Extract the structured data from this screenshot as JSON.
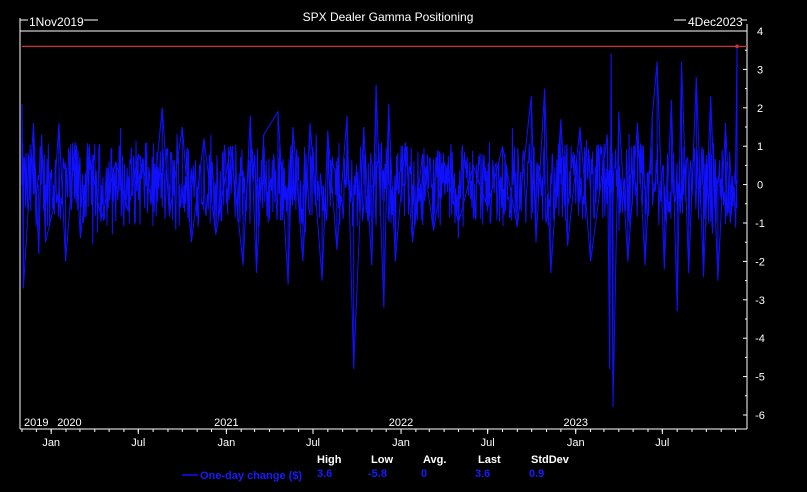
{
  "chart_data": {
    "type": "line",
    "title": "SPX Dealer Gamma Positioning",
    "date_range": {
      "start_label": "1Nov2019",
      "end_label": "4Dec2023"
    },
    "x": {
      "start": "2019-11-01",
      "end": "2023-12-04"
    },
    "ylim": [
      -6,
      4
    ],
    "y_ticks": [
      4,
      3,
      2,
      1,
      0,
      -1,
      -2,
      -3,
      -4,
      -5,
      -6
    ],
    "month_ticks": [
      {
        "label": "Jan",
        "date": "2020-01-01"
      },
      {
        "label": "Jul",
        "date": "2020-07-01"
      },
      {
        "label": "Jan",
        "date": "2021-01-01"
      },
      {
        "label": "Jul",
        "date": "2021-07-01"
      },
      {
        "label": "Jan",
        "date": "2022-01-01"
      },
      {
        "label": "Jul",
        "date": "2022-07-01"
      },
      {
        "label": "Jan",
        "date": "2023-01-01"
      },
      {
        "label": "Jul",
        "date": "2023-07-01"
      }
    ],
    "year_labels": [
      {
        "label": "2019",
        "date": "2019-11-01"
      },
      {
        "label": "2020",
        "date": "2020-01-01"
      },
      {
        "label": "2021",
        "date": "2021-01-01"
      },
      {
        "label": "2022",
        "date": "2022-01-01"
      },
      {
        "label": "2023",
        "date": "2023-01-01"
      }
    ],
    "grid": false,
    "reference_line": {
      "y": 3.6,
      "color": "#d0303a"
    },
    "series": [
      {
        "name": "One-day change ($)",
        "color": "#1010ff",
        "points": [
          [
            "2019-11-01",
            2.1
          ],
          [
            "2019-11-04",
            -2.7
          ],
          [
            "2019-11-25",
            1.6
          ],
          [
            "2019-12-06",
            -1.8
          ],
          [
            "2019-12-12",
            1.3
          ],
          [
            "2019-12-20",
            -1.5
          ],
          [
            "2020-01-06",
            -0.6
          ],
          [
            "2020-01-17",
            1.6
          ],
          [
            "2020-01-31",
            -2.0
          ],
          [
            "2020-02-20",
            1.1
          ],
          [
            "2020-03-02",
            -1.4
          ],
          [
            "2020-03-20",
            0.8
          ],
          [
            "2020-04-15",
            -0.9
          ],
          [
            "2020-05-15",
            0.6
          ],
          [
            "2020-06-10",
            -0.7
          ],
          [
            "2020-07-01",
            0.8
          ],
          [
            "2020-08-01",
            -0.5
          ],
          [
            "2020-08-20",
            2.0
          ],
          [
            "2020-09-04",
            -0.8
          ],
          [
            "2020-10-01",
            1.5
          ],
          [
            "2020-10-20",
            -1.5
          ],
          [
            "2020-11-15",
            1.2
          ],
          [
            "2020-12-10",
            -1.3
          ],
          [
            "2021-01-10",
            1.0
          ],
          [
            "2021-02-05",
            -2.1
          ],
          [
            "2021-02-20",
            1.8
          ],
          [
            "2021-03-05",
            -2.3
          ],
          [
            "2021-03-20",
            1.3
          ],
          [
            "2021-04-19",
            1.9
          ],
          [
            "2021-05-10",
            -2.6
          ],
          [
            "2021-05-20",
            1.5
          ],
          [
            "2021-06-10",
            -2.0
          ],
          [
            "2021-06-25",
            1.6
          ],
          [
            "2021-07-20",
            -2.5
          ],
          [
            "2021-08-01",
            1.4
          ],
          [
            "2021-08-20",
            -1.7
          ],
          [
            "2021-09-10",
            1.8
          ],
          [
            "2021-09-24",
            -4.8
          ],
          [
            "2021-10-15",
            1.5
          ],
          [
            "2021-11-01",
            -2.1
          ],
          [
            "2021-11-10",
            2.6
          ],
          [
            "2021-11-26",
            -3.2
          ],
          [
            "2021-12-06",
            2.1
          ],
          [
            "2021-12-20",
            -2.0
          ],
          [
            "2022-01-10",
            1.1
          ],
          [
            "2022-01-25",
            -1.5
          ],
          [
            "2022-02-15",
            0.8
          ],
          [
            "2022-03-10",
            -1.2
          ],
          [
            "2022-04-01",
            0.6
          ],
          [
            "2022-05-01",
            -1.0
          ],
          [
            "2022-06-01",
            0.5
          ],
          [
            "2022-07-01",
            -0.6
          ],
          [
            "2022-08-01",
            1.0
          ],
          [
            "2022-09-01",
            -1.1
          ],
          [
            "2022-09-30",
            2.3
          ],
          [
            "2022-10-10",
            -1.5
          ],
          [
            "2022-10-28",
            2.5
          ],
          [
            "2022-11-10",
            -2.3
          ],
          [
            "2022-12-01",
            1.7
          ],
          [
            "2022-12-15",
            -1.6
          ],
          [
            "2023-01-10",
            1.5
          ],
          [
            "2023-02-01",
            -2.0
          ],
          [
            "2023-03-08",
            1.3
          ],
          [
            "2023-03-13",
            -4.8
          ],
          [
            "2023-03-16",
            3.4
          ],
          [
            "2023-03-20",
            -5.8
          ],
          [
            "2023-04-01",
            1.9
          ],
          [
            "2023-04-20",
            -2.0
          ],
          [
            "2023-05-10",
            1.6
          ],
          [
            "2023-05-26",
            -2.1
          ],
          [
            "2023-06-10",
            1.8
          ],
          [
            "2023-06-20",
            3.2
          ],
          [
            "2023-07-05",
            -2.2
          ],
          [
            "2023-07-20",
            2.2
          ],
          [
            "2023-08-01",
            -3.3
          ],
          [
            "2023-08-10",
            3.2
          ],
          [
            "2023-08-25",
            -2.3
          ],
          [
            "2023-09-10",
            2.8
          ],
          [
            "2023-09-25",
            -2.4
          ],
          [
            "2023-10-10",
            2.3
          ],
          [
            "2023-10-25",
            -2.5
          ],
          [
            "2023-11-10",
            1.6
          ],
          [
            "2023-11-20",
            -1.0
          ],
          [
            "2023-12-01",
            0.5
          ],
          [
            "2023-12-04",
            3.6
          ]
        ]
      }
    ],
    "stats": {
      "headers": [
        "High",
        "Low",
        "Avg.",
        "Last",
        "StdDev"
      ],
      "values": [
        "3.6",
        "-5.8",
        "0",
        "3.6",
        "0.9"
      ]
    }
  }
}
